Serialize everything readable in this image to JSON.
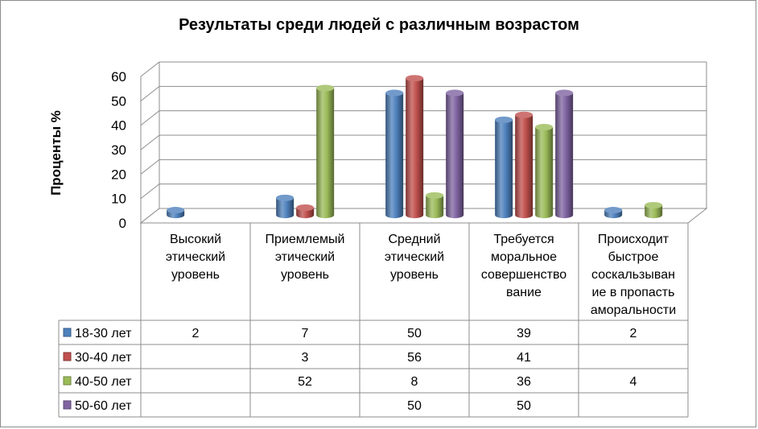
{
  "chart_data": {
    "type": "bar",
    "title": "Результаты среди людей с различным возрастом",
    "ylabel": "Проценты %",
    "xlabel": "",
    "ylim": [
      0,
      60
    ],
    "yticks": [
      0,
      10,
      20,
      30,
      40,
      50,
      60
    ],
    "grid": true,
    "legend": "data-table-left",
    "categories": [
      [
        "Высокий",
        "этический",
        "уровень"
      ],
      [
        "Приемлемый",
        "этический",
        "уровень"
      ],
      [
        "Средний",
        "этический",
        "уровень"
      ],
      [
        "Требуется",
        "моральное",
        "совершенство",
        "вание"
      ],
      [
        "Происходит",
        "быстрое",
        "соскальзыван",
        "ие в пропасть",
        "аморальности"
      ]
    ],
    "series": [
      {
        "name": "18-30 лет",
        "color": "#4f81bd",
        "values": [
          2,
          7,
          50,
          39,
          2
        ]
      },
      {
        "name": "30-40 лет",
        "color": "#c0504d",
        "values": [
          null,
          3,
          56,
          41,
          null
        ]
      },
      {
        "name": "40-50 лет",
        "color": "#9bbb59",
        "values": [
          null,
          52,
          8,
          36,
          4
        ]
      },
      {
        "name": "50-60 лет",
        "color": "#8064a2",
        "values": [
          null,
          null,
          50,
          50,
          null
        ]
      }
    ]
  }
}
